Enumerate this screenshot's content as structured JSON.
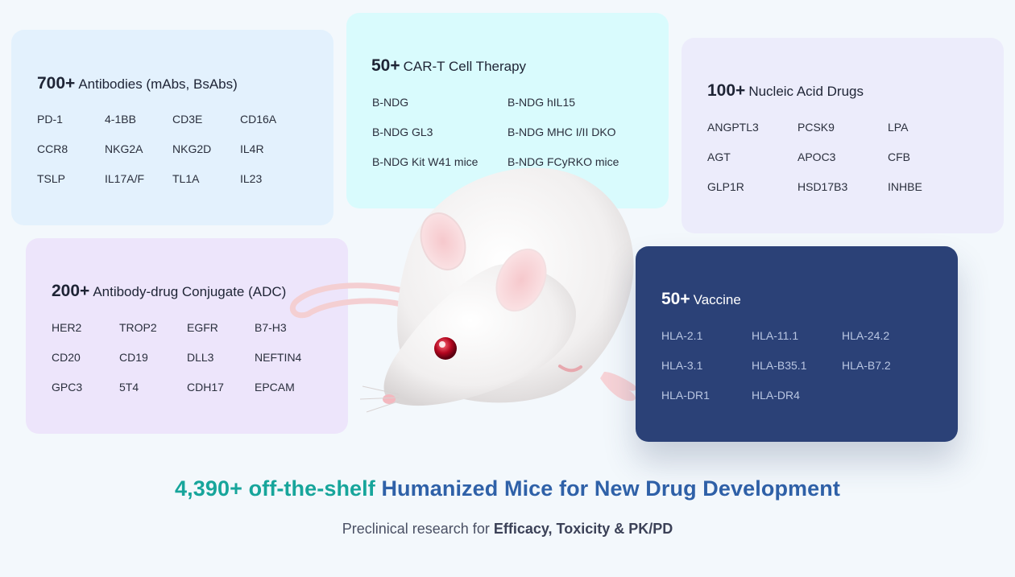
{
  "cards": {
    "antibodies": {
      "count": "700+",
      "title": "Antibodies (mAbs, BsAbs)",
      "items": [
        "PD-1",
        "4-1BB",
        "CD3E",
        "CD16A",
        "CCR8",
        "NKG2A",
        "NKG2D",
        "IL4R",
        "TSLP",
        "IL17A/F",
        "TL1A",
        "IL23"
      ]
    },
    "cart": {
      "count": "50+",
      "title": "CAR-T Cell Therapy",
      "items": [
        "B-NDG",
        "B-NDG hIL15",
        "B-NDG GL3",
        "B-NDG MHC I/II DKO",
        "B-NDG Kit W41 mice",
        "B-NDG FCyRKO mice"
      ]
    },
    "nucleic": {
      "count": "100+",
      "title": "Nucleic Acid Drugs",
      "items": [
        "ANGPTL3",
        "PCSK9",
        "LPA",
        "AGT",
        "APOC3",
        "CFB",
        "GLP1R",
        "HSD17B3",
        "INHBE"
      ]
    },
    "adc": {
      "count": "200+",
      "title": "Antibody-drug Conjugate (ADC)",
      "items": [
        "HER2",
        "TROP2",
        "EGFR",
        "B7-H3",
        "CD20",
        "CD19",
        "DLL3",
        "NEFTIN4",
        "GPC3",
        "5T4",
        "CDH17",
        "EPCAM"
      ]
    },
    "vaccine": {
      "count": "50+",
      "title": "Vaccine",
      "items": [
        "HLA-2.1",
        "HLA-11.1",
        "HLA-24.2",
        "HLA-3.1",
        "HLA-B35.1",
        "HLA-B7.2",
        "HLA-DR1",
        "HLA-DR4"
      ]
    }
  },
  "headline": {
    "part1": "4,390+ off-the-shelf",
    "part2": "Humanized Mice for New Drug Development"
  },
  "subline": {
    "prefix": "Preclinical research for",
    "bold": "Efficacy, Toxicity & PK/PD"
  },
  "colors": {
    "teal": "#17a59b",
    "blue": "#2f61a8",
    "vaccine_bg": "#2b4177"
  }
}
